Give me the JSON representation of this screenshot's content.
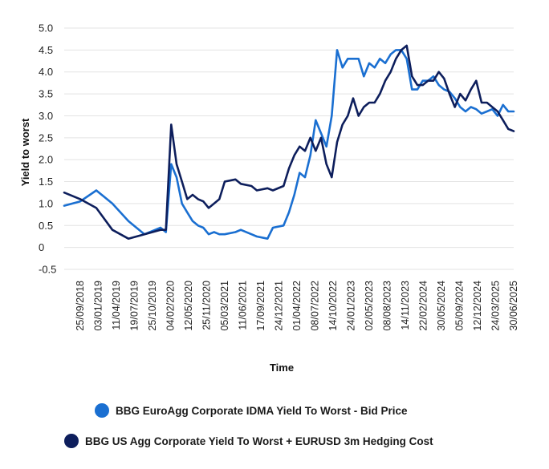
{
  "chart_data": {
    "type": "line",
    "title": "",
    "xlabel": "Time",
    "ylabel": "Yield to worst",
    "ylim": [
      -0.5,
      5.0
    ],
    "yticks": [
      "5.0",
      "4.5",
      "4.0",
      "3.5",
      "3.0",
      "2.5",
      "2.0",
      "1.5",
      "1.0",
      "0.5",
      "0",
      "-0.5"
    ],
    "xticks": [
      "25/09/2018",
      "03/01/2019",
      "11/04/2019",
      "19/07/2019",
      "25/10/2019",
      "04/02/2020",
      "12/05/2020",
      "25/11/2020",
      "05/03/2021",
      "11/06/2021",
      "17/09/2021",
      "24/12/2021",
      "01/04/2022",
      "08/07/2022",
      "14/10/2022",
      "24/01/2023",
      "02/05/2023",
      "08/08/2023",
      "14/11/2023",
      "22/02/2024",
      "30/05/2024",
      "05/09/2024",
      "12/12/2024",
      "24/03/2025",
      "30/06/2025"
    ],
    "grid": true,
    "legend_position": "bottom",
    "x": [
      "2018-07",
      "2018-10",
      "2019-01",
      "2019-04",
      "2019-07",
      "2019-10",
      "2020-01",
      "2020-02",
      "2020-03",
      "2020-04",
      "2020-05",
      "2020-06",
      "2020-07",
      "2020-08",
      "2020-09",
      "2020-10",
      "2020-11",
      "2020-12",
      "2021-01",
      "2021-03",
      "2021-04",
      "2021-06",
      "2021-07",
      "2021-09",
      "2021-10",
      "2021-12",
      "2022-01",
      "2022-02",
      "2022-03",
      "2022-04",
      "2022-05",
      "2022-06",
      "2022-07",
      "2022-08",
      "2022-09",
      "2022-10",
      "2022-11",
      "2022-12",
      "2023-01",
      "2023-02",
      "2023-03",
      "2023-04",
      "2023-05",
      "2023-06",
      "2023-07",
      "2023-08",
      "2023-09",
      "2023-10",
      "2023-11",
      "2023-12",
      "2024-01",
      "2024-02",
      "2024-03",
      "2024-04",
      "2024-05",
      "2024-06",
      "2024-07",
      "2024-08",
      "2024-09",
      "2024-10",
      "2024-11",
      "2024-12",
      "2025-01",
      "2025-02",
      "2025-03",
      "2025-04",
      "2025-05",
      "2025-06",
      "2025-07"
    ],
    "series": [
      {
        "name": "BBG EuroAgg Corporate IDMA Yield To Worst - Bid Price",
        "color": "#1a6fd1",
        "values": [
          0.95,
          1.05,
          1.3,
          1.0,
          0.6,
          0.3,
          0.45,
          0.35,
          1.9,
          1.6,
          1.0,
          0.8,
          0.6,
          0.5,
          0.45,
          0.3,
          0.35,
          0.3,
          0.3,
          0.35,
          0.4,
          0.3,
          0.25,
          0.2,
          0.45,
          0.5,
          0.8,
          1.2,
          1.7,
          1.6,
          2.1,
          2.9,
          2.6,
          2.3,
          3.0,
          4.5,
          4.1,
          4.3,
          4.3,
          4.3,
          3.9,
          4.2,
          4.1,
          4.3,
          4.2,
          4.4,
          4.5,
          4.5,
          4.3,
          3.6,
          3.6,
          3.8,
          3.8,
          3.9,
          3.7,
          3.6,
          3.55,
          3.4,
          3.2,
          3.1,
          3.2,
          3.15,
          3.05,
          3.1,
          3.15,
          3.0,
          3.25,
          3.1,
          3.1
        ]
      },
      {
        "name": "BBG US Agg Corporate Yield To Worst + EURUSD 3m Hedging Cost",
        "color": "#0d1e5c",
        "values": [
          1.25,
          1.1,
          0.9,
          0.4,
          0.2,
          0.3,
          0.4,
          0.4,
          2.8,
          1.9,
          1.5,
          1.1,
          1.2,
          1.1,
          1.05,
          0.9,
          1.0,
          1.1,
          1.5,
          1.55,
          1.45,
          1.4,
          1.3,
          1.35,
          1.3,
          1.4,
          1.8,
          2.1,
          2.3,
          2.2,
          2.5,
          2.2,
          2.5,
          1.9,
          1.6,
          2.4,
          2.8,
          3.0,
          3.4,
          3.0,
          3.2,
          3.3,
          3.3,
          3.5,
          3.8,
          4.0,
          4.3,
          4.5,
          4.6,
          3.9,
          3.7,
          3.7,
          3.8,
          3.8,
          4.0,
          3.85,
          3.5,
          3.2,
          3.5,
          3.35,
          3.6,
          3.8,
          3.3,
          3.3,
          3.2,
          3.1,
          2.9,
          2.7,
          2.65
        ]
      }
    ]
  }
}
